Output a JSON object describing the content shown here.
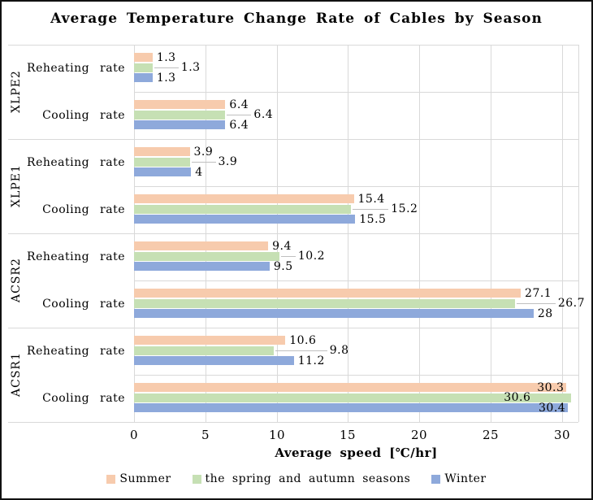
{
  "window": {
    "title": "Average Temperature Change Rate of Cables by Season"
  },
  "colors": {
    "summer": "#F7CBAD",
    "spring_autumn": "#C6E0B4",
    "winter": "#8EA9DB",
    "gridline": "#D9D9D9",
    "leader_line": "#BFBFBF",
    "border": "#111111"
  },
  "chart_data": {
    "type": "bar",
    "orientation": "horizontal",
    "title": "Average Temperature Change Rate of Cables by Season",
    "xlabel": "Average speed [℃/hr]",
    "x_ticks": [
      0,
      5,
      10,
      15,
      20,
      25,
      30
    ],
    "xlim": [
      0,
      31.1
    ],
    "grid": true,
    "legend_position": "bottom",
    "series": [
      {
        "name": "Summer",
        "color": "#F7CBAD"
      },
      {
        "name": "the spring and autumn seasons",
        "color": "#C6E0B4"
      },
      {
        "name": "Winter",
        "color": "#8EA9DB"
      }
    ],
    "groups": [
      {
        "label": "XLPE2",
        "rows": [
          {
            "label": "Reheating rate",
            "values": [
              1.3,
              1.3,
              1.3
            ]
          },
          {
            "label": "Cooling rate",
            "values": [
              6.4,
              6.4,
              6.4
            ]
          }
        ]
      },
      {
        "label": "XLPE1",
        "rows": [
          {
            "label": "Reheating rate",
            "values": [
              3.9,
              3.9,
              4
            ]
          },
          {
            "label": "Cooling rate",
            "values": [
              15.4,
              15.2,
              15.5
            ]
          }
        ]
      },
      {
        "label": "ACSR2",
        "rows": [
          {
            "label": "Reheating rate",
            "values": [
              9.4,
              10.2,
              9.5
            ]
          },
          {
            "label": "Cooling rate",
            "values": [
              27.1,
              26.7,
              28
            ]
          }
        ]
      },
      {
        "label": "ACSR1",
        "rows": [
          {
            "label": "Reheating rate",
            "values": [
              10.6,
              9.8,
              11.2
            ]
          },
          {
            "label": "Cooling rate",
            "values": [
              30.3,
              30.6,
              30.4
            ]
          }
        ]
      }
    ]
  }
}
